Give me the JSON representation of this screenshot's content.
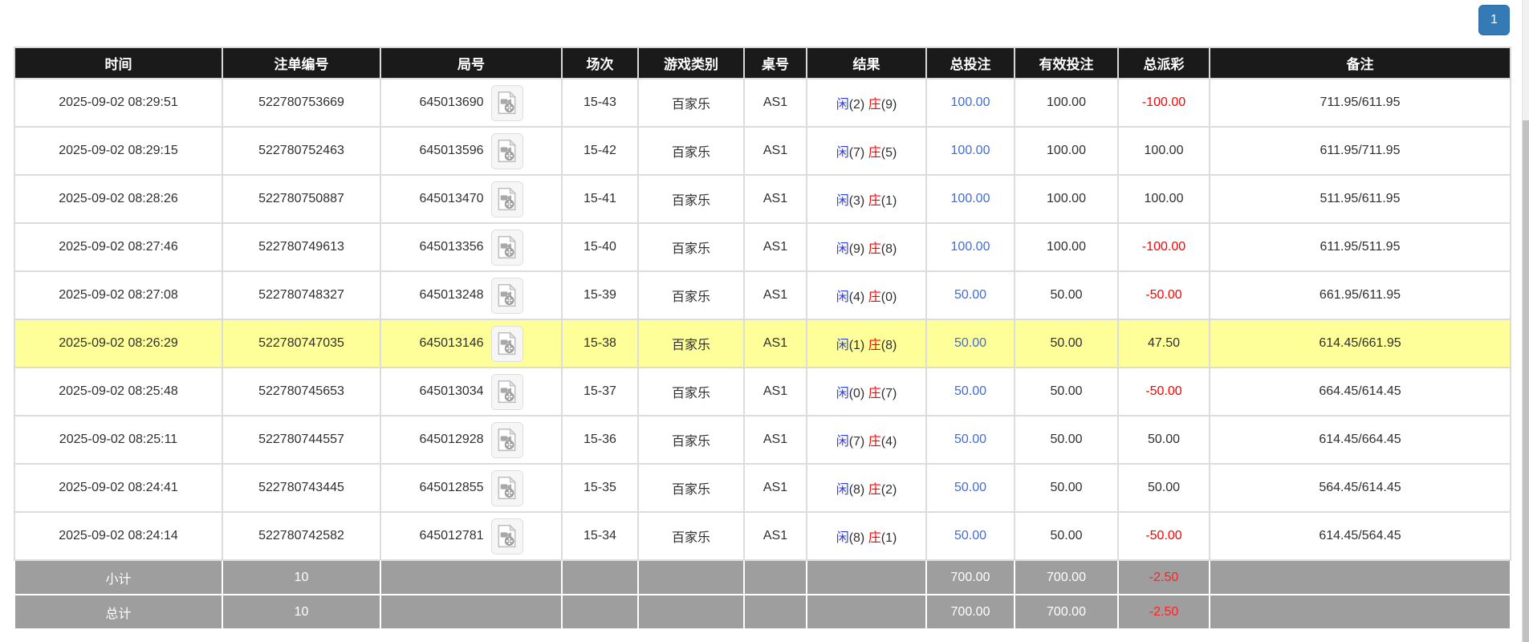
{
  "pagination": {
    "current_page": "1"
  },
  "colors": {
    "header_bg": "#1a1a1a",
    "highlight_row": "#ffff99",
    "sum_row_bg": "#9e9e9e",
    "bet_amount_blue": "#3f6be0",
    "player_blue": "#2d3de3",
    "banker_red": "#ff0000",
    "negative_red": "#ff0000",
    "pagination_blue": "#337ab7"
  },
  "table": {
    "columns": [
      {
        "key": "time",
        "label": "时间"
      },
      {
        "key": "bet_id",
        "label": "注单编号"
      },
      {
        "key": "round_id",
        "label": "局号"
      },
      {
        "key": "session",
        "label": "场次"
      },
      {
        "key": "game_type",
        "label": "游戏类别"
      },
      {
        "key": "table_no",
        "label": "桌号"
      },
      {
        "key": "result",
        "label": "结果"
      },
      {
        "key": "total_bet",
        "label": "总投注"
      },
      {
        "key": "valid_bet",
        "label": "有效投注"
      },
      {
        "key": "payout",
        "label": "总派彩"
      },
      {
        "key": "remark",
        "label": "备注"
      }
    ],
    "video_icon": "video-record-icon",
    "rows": [
      {
        "time": "2025-09-02 08:29:51",
        "bet_id": "522780753669",
        "round_id": "645013690",
        "session": "15-43",
        "game_type": "百家乐",
        "table_no": "AS1",
        "result": {
          "player_label": "闲",
          "player_score": "2",
          "banker_label": "庄",
          "banker_score": "9"
        },
        "total_bet": "100.00",
        "valid_bet": "100.00",
        "payout": "-100.00",
        "remark": "711.95/611.95",
        "highlighted": false
      },
      {
        "time": "2025-09-02 08:29:15",
        "bet_id": "522780752463",
        "round_id": "645013596",
        "session": "15-42",
        "game_type": "百家乐",
        "table_no": "AS1",
        "result": {
          "player_label": "闲",
          "player_score": "7",
          "banker_label": "庄",
          "banker_score": "5"
        },
        "total_bet": "100.00",
        "valid_bet": "100.00",
        "payout": "100.00",
        "remark": "611.95/711.95",
        "highlighted": false
      },
      {
        "time": "2025-09-02 08:28:26",
        "bet_id": "522780750887",
        "round_id": "645013470",
        "session": "15-41",
        "game_type": "百家乐",
        "table_no": "AS1",
        "result": {
          "player_label": "闲",
          "player_score": "3",
          "banker_label": "庄",
          "banker_score": "1"
        },
        "total_bet": "100.00",
        "valid_bet": "100.00",
        "payout": "100.00",
        "remark": "511.95/611.95",
        "highlighted": false
      },
      {
        "time": "2025-09-02 08:27:46",
        "bet_id": "522780749613",
        "round_id": "645013356",
        "session": "15-40",
        "game_type": "百家乐",
        "table_no": "AS1",
        "result": {
          "player_label": "闲",
          "player_score": "9",
          "banker_label": "庄",
          "banker_score": "8"
        },
        "total_bet": "100.00",
        "valid_bet": "100.00",
        "payout": "-100.00",
        "remark": "611.95/511.95",
        "highlighted": false
      },
      {
        "time": "2025-09-02 08:27:08",
        "bet_id": "522780748327",
        "round_id": "645013248",
        "session": "15-39",
        "game_type": "百家乐",
        "table_no": "AS1",
        "result": {
          "player_label": "闲",
          "player_score": "4",
          "banker_label": "庄",
          "banker_score": "0"
        },
        "total_bet": "50.00",
        "valid_bet": "50.00",
        "payout": "-50.00",
        "remark": "661.95/611.95",
        "highlighted": false
      },
      {
        "time": "2025-09-02 08:26:29",
        "bet_id": "522780747035",
        "round_id": "645013146",
        "session": "15-38",
        "game_type": "百家乐",
        "table_no": "AS1",
        "result": {
          "player_label": "闲",
          "player_score": "1",
          "banker_label": "庄",
          "banker_score": "8"
        },
        "total_bet": "50.00",
        "valid_bet": "50.00",
        "payout": "47.50",
        "remark": "614.45/661.95",
        "highlighted": true
      },
      {
        "time": "2025-09-02 08:25:48",
        "bet_id": "522780745653",
        "round_id": "645013034",
        "session": "15-37",
        "game_type": "百家乐",
        "table_no": "AS1",
        "result": {
          "player_label": "闲",
          "player_score": "0",
          "banker_label": "庄",
          "banker_score": "7"
        },
        "total_bet": "50.00",
        "valid_bet": "50.00",
        "payout": "-50.00",
        "remark": "664.45/614.45",
        "highlighted": false
      },
      {
        "time": "2025-09-02 08:25:11",
        "bet_id": "522780744557",
        "round_id": "645012928",
        "session": "15-36",
        "game_type": "百家乐",
        "table_no": "AS1",
        "result": {
          "player_label": "闲",
          "player_score": "7",
          "banker_label": "庄",
          "banker_score": "4"
        },
        "total_bet": "50.00",
        "valid_bet": "50.00",
        "payout": "50.00",
        "remark": "614.45/664.45",
        "highlighted": false
      },
      {
        "time": "2025-09-02 08:24:41",
        "bet_id": "522780743445",
        "round_id": "645012855",
        "session": "15-35",
        "game_type": "百家乐",
        "table_no": "AS1",
        "result": {
          "player_label": "闲",
          "player_score": "8",
          "banker_label": "庄",
          "banker_score": "2"
        },
        "total_bet": "50.00",
        "valid_bet": "50.00",
        "payout": "50.00",
        "remark": "564.45/614.45",
        "highlighted": false
      },
      {
        "time": "2025-09-02 08:24:14",
        "bet_id": "522780742582",
        "round_id": "645012781",
        "session": "15-34",
        "game_type": "百家乐",
        "table_no": "AS1",
        "result": {
          "player_label": "闲",
          "player_score": "8",
          "banker_label": "庄",
          "banker_score": "1"
        },
        "total_bet": "50.00",
        "valid_bet": "50.00",
        "payout": "-50.00",
        "remark": "614.45/564.45",
        "highlighted": false
      }
    ],
    "subtotal": {
      "label": "小计",
      "count": "10",
      "total_bet": "700.00",
      "valid_bet": "700.00",
      "payout": "-2.50"
    },
    "total": {
      "label": "总计",
      "count": "10",
      "total_bet": "700.00",
      "valid_bet": "700.00",
      "payout": "-2.50"
    }
  }
}
